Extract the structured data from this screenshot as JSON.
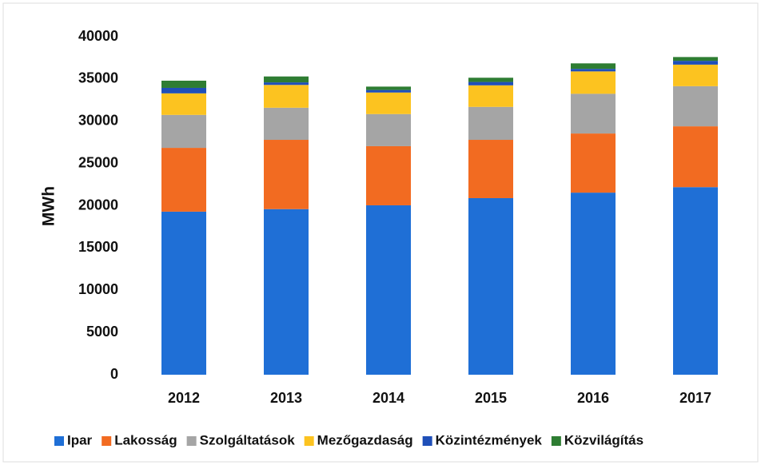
{
  "chart_data": {
    "type": "stacked_bar",
    "y_label": "MWh",
    "categories": [
      "2012",
      "2013",
      "2014",
      "2015",
      "2016",
      "2017"
    ],
    "series": [
      {
        "name": "Ipar",
        "color": "#1f6fd6",
        "values": [
          19300,
          19600,
          20050,
          20900,
          21550,
          22200
        ]
      },
      {
        "name": "Lakosság",
        "color": "#f26b21",
        "values": [
          7550,
          8200,
          7000,
          6900,
          7000,
          7200
        ]
      },
      {
        "name": "Szolgáltatások",
        "color": "#a5a5a5",
        "values": [
          3900,
          3800,
          3800,
          3900,
          4700,
          4750
        ]
      },
      {
        "name": "Mezőgazdaság",
        "color": "#fcc320",
        "values": [
          2550,
          2700,
          2550,
          2550,
          2650,
          2550
        ]
      },
      {
        "name": "Közintézmények",
        "color": "#1f4fb8",
        "values": [
          650,
          300,
          300,
          400,
          300,
          450
        ]
      },
      {
        "name": "Közvilágítás",
        "color": "#2e7d32",
        "values": [
          850,
          700,
          400,
          500,
          650,
          450
        ]
      }
    ],
    "ylim": [
      0,
      40000
    ],
    "yticks": [
      0,
      5000,
      10000,
      15000,
      20000,
      25000,
      30000,
      35000,
      40000
    ],
    "legend": "bottom"
  }
}
